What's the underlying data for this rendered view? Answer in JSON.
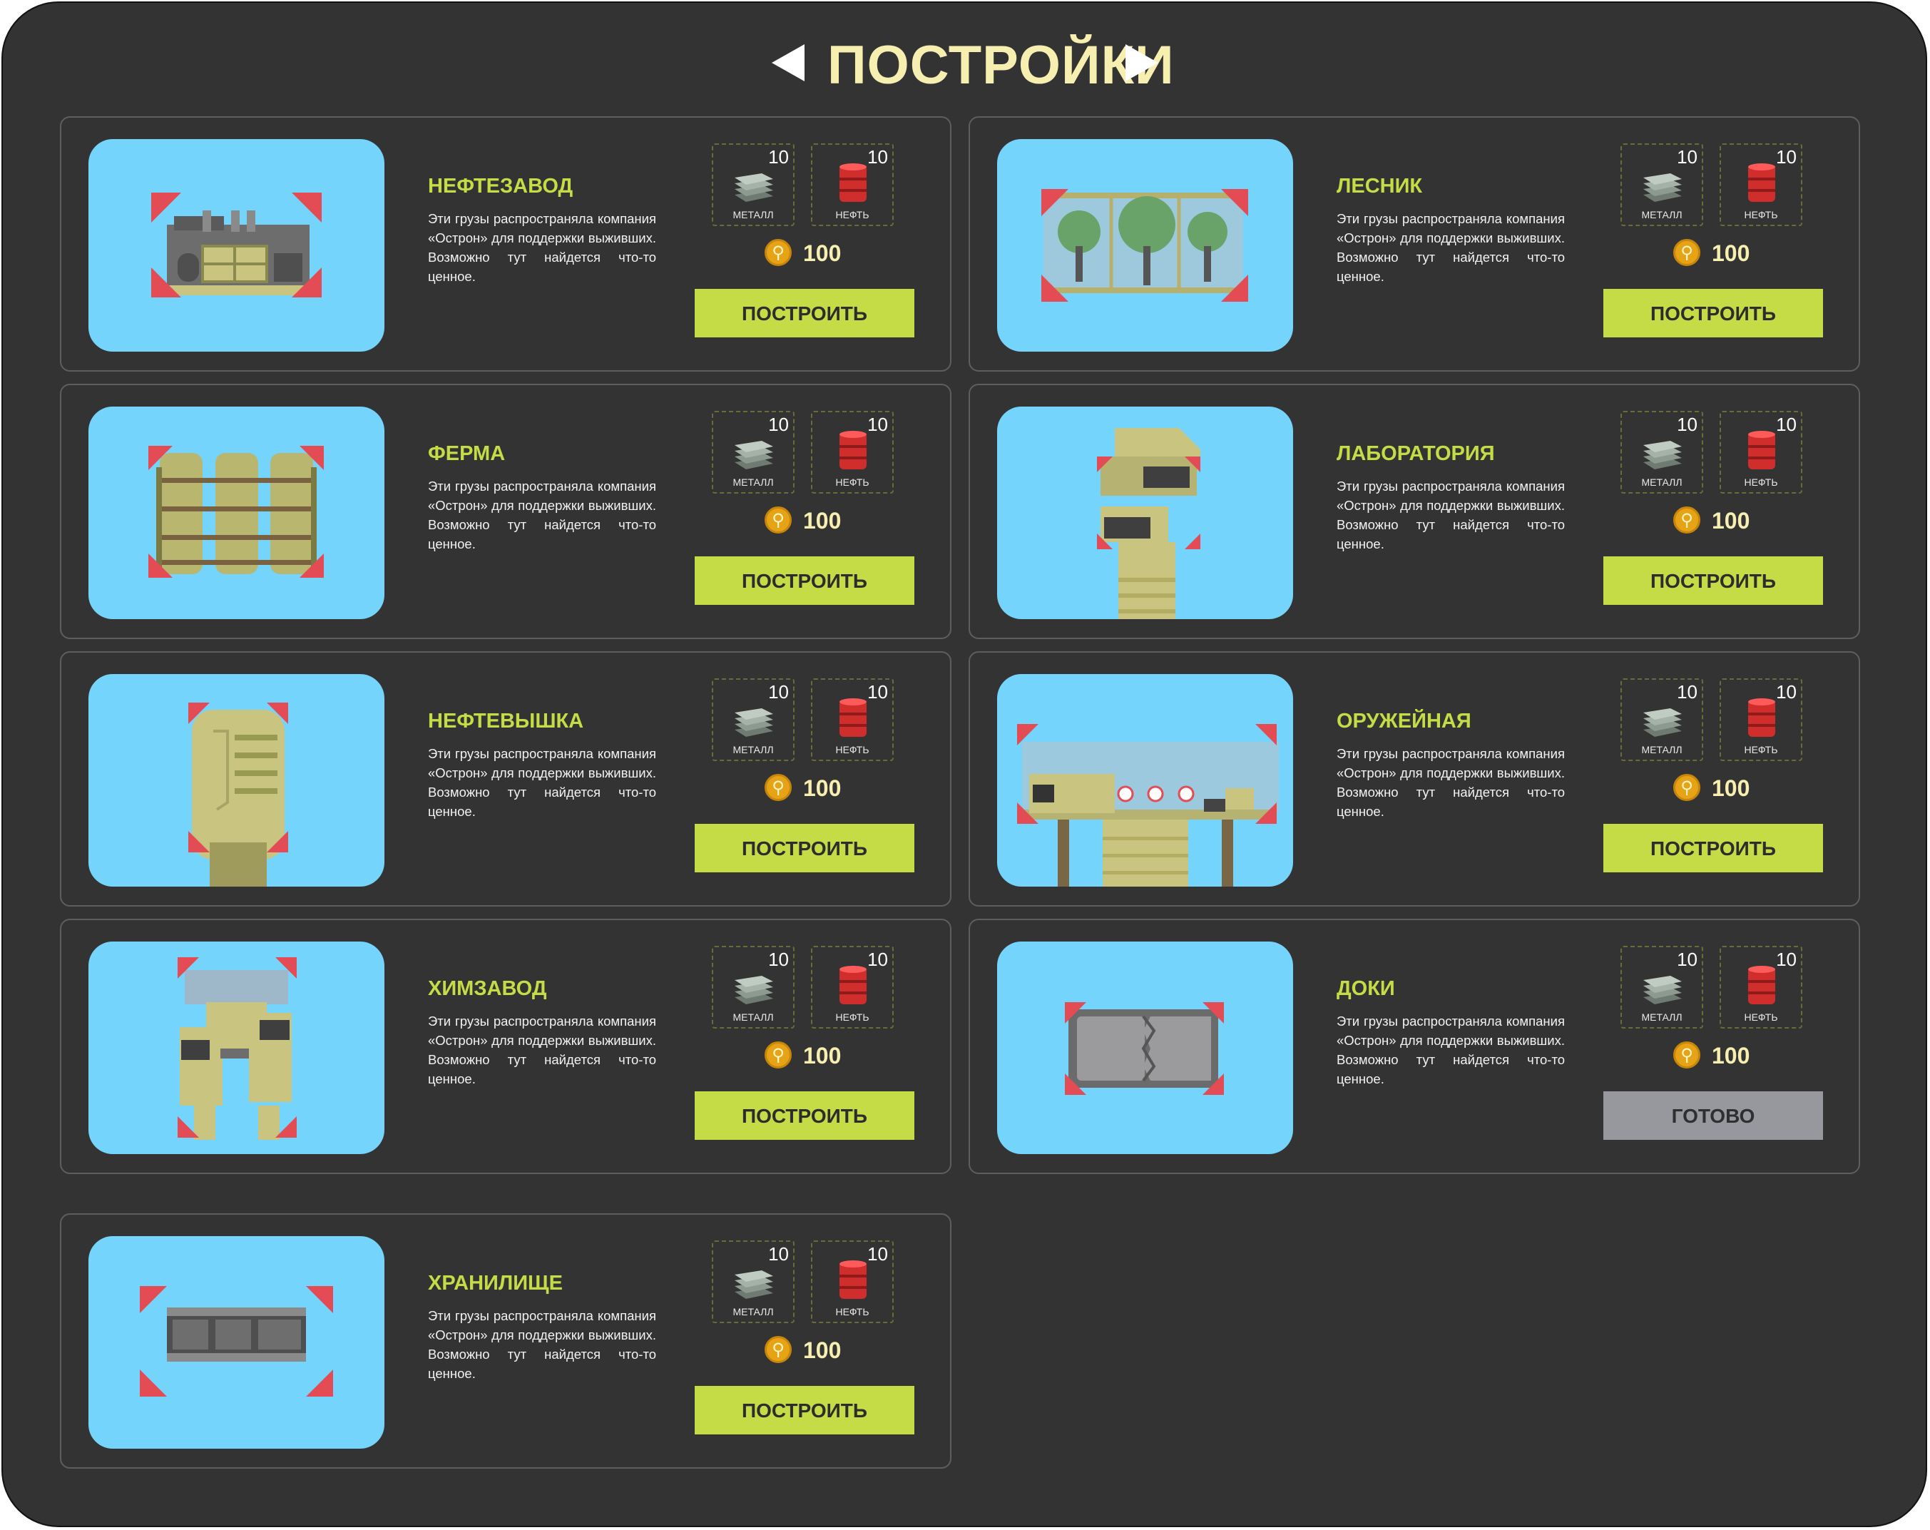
{
  "title": "ПОСТРОЙКИ",
  "icons": {
    "prev": "arrow-left-icon",
    "next": "arrow-right-icon",
    "metal": "metal-sheets-icon",
    "oil": "oil-barrel-icon",
    "coin": "coin-icon"
  },
  "colors": {
    "panel": "#333333",
    "accent": "#c5dc47",
    "title": "#f7efb0",
    "thumb": "#75d4fb",
    "done": "#97979e"
  },
  "labels": {
    "metal": "МЕТАЛЛ",
    "oil": "НЕФТЬ",
    "coin_symbol": "⚲"
  },
  "buildings": [
    {
      "name": "НЕФТЕЗАВОД",
      "desc": "Эти грузы распространяла компания «Острон» для поддержки выживших. Возможно тут найдется что-то ценное.",
      "metal": "10",
      "oil": "10",
      "cost": "100",
      "button": "ПОСТРОИТЬ",
      "done": false
    },
    {
      "name": "ЛЕСНИК",
      "desc": "Эти грузы распространяла компания «Острон» для поддержки выживших. Возможно тут найдется что-то ценное.",
      "metal": "10",
      "oil": "10",
      "cost": "100",
      "button": "ПОСТРОИТЬ",
      "done": false
    },
    {
      "name": "ФЕРМА",
      "desc": "Эти грузы распространяла компания «Острон» для поддержки выживших. Возможно тут найдется что-то ценное.",
      "metal": "10",
      "oil": "10",
      "cost": "100",
      "button": "ПОСТРОИТЬ",
      "done": false
    },
    {
      "name": "ЛАБОРАТОРИЯ",
      "desc": "Эти грузы распространяла компания «Острон» для поддержки выживших. Возможно тут найдется что-то ценное.",
      "metal": "10",
      "oil": "10",
      "cost": "100",
      "button": "ПОСТРОИТЬ",
      "done": false
    },
    {
      "name": "НЕФТЕВЫШКА",
      "desc": "Эти грузы распространяла компания «Острон» для поддержки выживших. Возможно тут найдется что-то ценное.",
      "metal": "10",
      "oil": "10",
      "cost": "100",
      "button": "ПОСТРОИТЬ",
      "done": false
    },
    {
      "name": "ОРУЖЕЙНАЯ",
      "desc": "Эти грузы распространяла компания «Острон» для поддержки выживших. Возможно тут найдется что-то ценное.",
      "metal": "10",
      "oil": "10",
      "cost": "100",
      "button": "ПОСТРОИТЬ",
      "done": false
    },
    {
      "name": "ХИМЗАВОД",
      "desc": "Эти грузы распространяла компания «Острон» для поддержки выживших. Возможно тут найдется что-то ценное.",
      "metal": "10",
      "oil": "10",
      "cost": "100",
      "button": "ПОСТРОИТЬ",
      "done": false
    },
    {
      "name": "ДОКИ",
      "desc": "Эти грузы распространяла компания «Острон» для поддержки выживших. Возможно тут найдется что-то ценное.",
      "metal": "10",
      "oil": "10",
      "cost": "100",
      "button": "ГОТОВО",
      "done": true
    },
    {
      "name": "ХРАНИЛИЩЕ",
      "desc": "Эти грузы распространяла компания «Острон» для поддержки выживших. Возможно тут найдется что-то ценное.",
      "metal": "10",
      "oil": "10",
      "cost": "100",
      "button": "ПОСТРОИТЬ",
      "done": false
    }
  ]
}
